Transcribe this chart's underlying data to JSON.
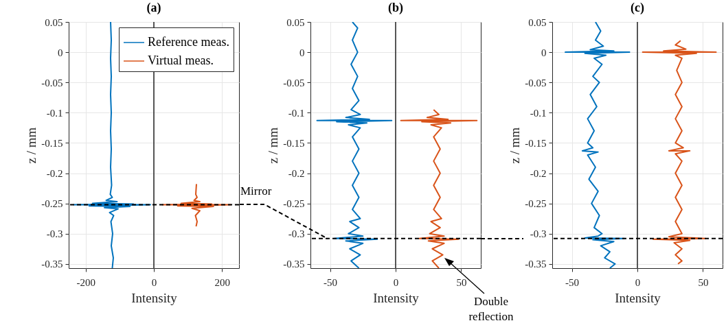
{
  "chart_data": [
    {
      "type": "line",
      "title": "(a)",
      "xlabel": "Intensity",
      "ylabel": "z / mm",
      "xlim": [
        -250,
        250
      ],
      "xticks": [
        -200,
        0,
        200
      ],
      "ylim": [
        -0.357,
        0.05
      ],
      "yticks": [
        0.05,
        0,
        -0.05,
        -0.1,
        -0.15,
        -0.2,
        -0.25,
        -0.3,
        -0.35
      ],
      "grid": true,
      "legend": "top right",
      "annotations": [
        "Mirror"
      ],
      "ref_lines": [
        {
          "axis": "x",
          "value": 0,
          "color": "#000000",
          "line_style": "solid"
        },
        {
          "axis": "y",
          "value": -0.252,
          "color": "#000000",
          "line_style": "dashed"
        }
      ],
      "series": [
        {
          "name": "Reference meas.",
          "color": "#0072bd",
          "x": [
            -127,
            -125,
            -127,
            -125,
            -127,
            -125,
            -127,
            -125,
            -127,
            -124,
            -128,
            -122,
            -140,
            -108,
            -180,
            -60,
            -235,
            -10,
            -190,
            -70,
            -145,
            -105,
            -130,
            -118,
            -126,
            -121,
            -125,
            -119,
            -122
          ],
          "values": [
            0.05,
            0.02,
            -0.01,
            -0.04,
            -0.07,
            -0.1,
            -0.13,
            -0.16,
            -0.19,
            -0.22,
            -0.235,
            -0.24,
            -0.245,
            -0.247,
            -0.25,
            -0.251,
            -0.252,
            -0.252,
            -0.254,
            -0.255,
            -0.257,
            -0.259,
            -0.265,
            -0.27,
            -0.28,
            -0.3,
            -0.32,
            -0.34,
            -0.357
          ]
        },
        {
          "name": "Virtual meas.",
          "color": "#d95319",
          "x": [
            125,
            123,
            127,
            118,
            135,
            80,
            170,
            25,
            225,
            70,
            175,
            112,
            135,
            122,
            127,
            124
          ],
          "values": [
            -0.218,
            -0.235,
            -0.24,
            -0.245,
            -0.247,
            -0.25,
            -0.251,
            -0.252,
            -0.252,
            -0.254,
            -0.255,
            -0.258,
            -0.262,
            -0.27,
            -0.28,
            -0.288
          ]
        }
      ]
    },
    {
      "type": "line",
      "title": "(b)",
      "xlabel": "Intensity",
      "ylabel": "z / mm",
      "xlim": [
        -65,
        65
      ],
      "xticks": [
        -50,
        0,
        50
      ],
      "ylim": [
        -0.357,
        0.05
      ],
      "yticks": [
        0.05,
        0,
        -0.05,
        -0.1,
        -0.15,
        -0.2,
        -0.25,
        -0.3,
        -0.35
      ],
      "grid": true,
      "annotations": [
        "Double reflection"
      ],
      "ref_lines": [
        {
          "axis": "x",
          "value": 0,
          "color": "#000000",
          "line_style": "solid"
        },
        {
          "axis": "y",
          "value": -0.308,
          "color": "#000000",
          "line_style": "dashed"
        }
      ],
      "series": [
        {
          "color": "#0072bd",
          "x": [
            -33,
            -29,
            -33,
            -29,
            -34,
            -29,
            -33,
            -28,
            -34,
            -27,
            -38,
            -20,
            -60,
            -3,
            -45,
            -22,
            -36,
            -27,
            -33,
            -28,
            -33,
            -28,
            -33,
            -28,
            -33,
            -27,
            -35,
            -28,
            -36,
            -25,
            -47,
            -14,
            -38,
            -25,
            -35,
            -27,
            -34,
            -28
          ],
          "values": [
            0.05,
            0.04,
            0.02,
            0.0,
            -0.02,
            -0.04,
            -0.06,
            -0.08,
            -0.095,
            -0.103,
            -0.108,
            -0.111,
            -0.113,
            -0.113,
            -0.115,
            -0.117,
            -0.12,
            -0.125,
            -0.14,
            -0.16,
            -0.18,
            -0.2,
            -0.22,
            -0.24,
            -0.26,
            -0.275,
            -0.28,
            -0.29,
            -0.3,
            -0.304,
            -0.308,
            -0.309,
            -0.312,
            -0.316,
            -0.325,
            -0.335,
            -0.345,
            -0.357
          ]
        },
        {
          "color": "#d95319",
          "x": [
            29,
            33,
            24,
            40,
            4,
            62,
            20,
            42,
            27,
            35,
            29,
            34,
            29,
            34,
            29,
            34,
            29,
            35,
            27,
            34,
            26,
            37,
            18,
            48,
            25,
            37,
            28,
            36,
            28,
            33
          ],
          "values": [
            -0.095,
            -0.103,
            -0.108,
            -0.111,
            -0.113,
            -0.113,
            -0.115,
            -0.117,
            -0.12,
            -0.125,
            -0.14,
            -0.16,
            -0.18,
            -0.2,
            -0.22,
            -0.24,
            -0.26,
            -0.275,
            -0.28,
            -0.29,
            -0.3,
            -0.304,
            -0.308,
            -0.309,
            -0.312,
            -0.316,
            -0.325,
            -0.335,
            -0.345,
            -0.357
          ]
        }
      ]
    },
    {
      "type": "line",
      "title": "(c)",
      "xlabel": "Intensity",
      "ylabel": "z / mm",
      "xlim": [
        -65,
        65
      ],
      "xticks": [
        -50,
        0,
        50
      ],
      "ylim": [
        -0.357,
        0.05
      ],
      "yticks": [
        0.05,
        0,
        -0.05,
        -0.1,
        -0.15,
        -0.2,
        -0.25,
        -0.3,
        -0.35
      ],
      "grid": true,
      "ref_lines": [
        {
          "axis": "x",
          "value": 0,
          "color": "#000000",
          "line_style": "solid"
        },
        {
          "axis": "y",
          "value": -0.308,
          "color": "#000000",
          "line_style": "dashed"
        }
      ],
      "series": [
        {
          "color": "#0072bd",
          "x": [
            -32,
            -28,
            -32,
            -26,
            -36,
            -18,
            -55,
            -6,
            -40,
            -24,
            -33,
            -27,
            -34,
            -29,
            -36,
            -31,
            -38,
            -33,
            -38,
            -34,
            -42,
            -30,
            -38,
            -32,
            -37,
            -30,
            -35,
            -29,
            -33,
            -27,
            -30,
            -40,
            -10,
            -34,
            -18,
            -28,
            -21,
            -25,
            -17,
            -21
          ],
          "values": [
            0.05,
            0.035,
            0.02,
            0.01,
            0.004,
            0.002,
            0.0,
            0.0,
            -0.002,
            -0.005,
            -0.01,
            -0.02,
            -0.04,
            -0.05,
            -0.07,
            -0.09,
            -0.11,
            -0.13,
            -0.15,
            -0.158,
            -0.163,
            -0.165,
            -0.17,
            -0.19,
            -0.21,
            -0.23,
            -0.25,
            -0.27,
            -0.29,
            -0.3,
            -0.304,
            -0.307,
            -0.308,
            -0.31,
            -0.313,
            -0.32,
            -0.33,
            -0.34,
            -0.35,
            -0.357
          ]
        },
        {
          "color": "#d95319",
          "x": [
            33,
            29,
            37,
            20,
            60,
            4,
            45,
            29,
            34,
            30,
            34,
            29,
            34,
            29,
            34,
            29,
            35,
            24,
            40,
            29,
            34,
            29,
            34,
            29,
            34,
            29,
            34,
            24,
            52,
            12,
            40,
            28,
            34,
            29,
            34,
            31
          ],
          "values": [
            0.019,
            0.012,
            0.005,
            0.002,
            0.0,
            0.0,
            -0.002,
            -0.005,
            -0.01,
            -0.03,
            -0.05,
            -0.07,
            -0.09,
            -0.11,
            -0.13,
            -0.15,
            -0.158,
            -0.163,
            -0.163,
            -0.168,
            -0.18,
            -0.2,
            -0.22,
            -0.24,
            -0.26,
            -0.28,
            -0.3,
            -0.305,
            -0.308,
            -0.309,
            -0.311,
            -0.315,
            -0.325,
            -0.335,
            -0.345,
            -0.35
          ]
        }
      ]
    }
  ]
}
